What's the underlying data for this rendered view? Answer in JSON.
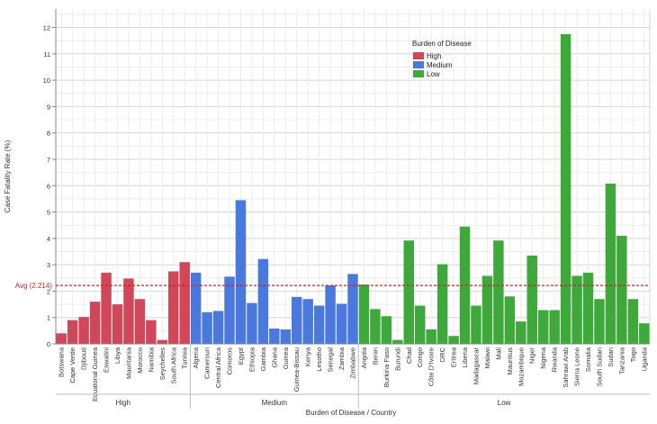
{
  "chart_data": {
    "type": "bar",
    "ylabel": "Case Fatality Rate (%)",
    "xlabel": "Burden of Disease / Country",
    "ylim": [
      0,
      12.7
    ],
    "yticks": [
      0,
      1,
      2,
      3,
      4,
      5,
      6,
      7,
      8,
      9,
      10,
      11,
      12
    ],
    "grid": true,
    "average": {
      "label": "Avg (2.214)",
      "value": 2.214,
      "color": "#c0272d"
    },
    "legend": {
      "title": "Burden of Disease",
      "position": "top-center",
      "entries": [
        {
          "label": "High",
          "color": "#d1475a"
        },
        {
          "label": "Medium",
          "color": "#4a78dd"
        },
        {
          "label": "Low",
          "color": "#3fa83a"
        }
      ]
    },
    "groups": [
      {
        "name": "High",
        "color": "#d1475a",
        "categories": [
          "Botswana",
          "Cape Verde",
          "Djibouti",
          "Equatorial Guinea",
          "Eswatini",
          "Libya",
          "Mauritania",
          "Morocco",
          "Namibia",
          "Seychelles",
          "South Africa",
          "Tunisia"
        ],
        "values": [
          0.4,
          0.9,
          1.02,
          1.6,
          2.7,
          1.5,
          2.48,
          1.7,
          0.9,
          0.15,
          2.75,
          3.1
        ]
      },
      {
        "name": "Medium",
        "color": "#4a78dd",
        "categories": [
          "Algeria",
          "Cameroun",
          "Central Africa",
          "Comoros",
          "Egypt",
          "Ethiopia",
          "Gambia",
          "Ghana",
          "Guinea",
          "Guinea-Bissau",
          "Kenya",
          "Lesotho",
          "Senegal",
          "Zambia",
          "Zimbabwe"
        ],
        "values": [
          2.7,
          1.2,
          1.25,
          2.55,
          5.45,
          1.55,
          3.22,
          0.58,
          0.55,
          1.78,
          1.7,
          1.45,
          2.22,
          1.52,
          2.65
        ]
      },
      {
        "name": "Low",
        "color": "#3fa83a",
        "categories": [
          "Angola",
          "Benin",
          "Burkina Faso",
          "Burundi",
          "Chad",
          "Congo",
          "Côte D'Ivoire",
          "DRC",
          "Eritrea",
          "Liberia",
          "Madagascar",
          "Malawi",
          "Mali",
          "Mauritius",
          "Mozambique",
          "Niger",
          "Nigeria",
          "Rwanda",
          "Sahrawi Arab",
          "Sierra Leone",
          "Somalia",
          "South Sudan",
          "Sudan",
          "Tanzania",
          "Togo",
          "Uganda"
        ],
        "values": [
          2.25,
          1.32,
          1.05,
          0.15,
          3.92,
          1.45,
          0.55,
          3.02,
          0.3,
          4.45,
          1.45,
          2.58,
          3.92,
          1.8,
          0.85,
          3.35,
          1.28,
          1.28,
          11.75,
          2.58,
          2.7,
          1.7,
          6.08,
          4.1,
          1.7,
          0.78
        ]
      }
    ]
  }
}
